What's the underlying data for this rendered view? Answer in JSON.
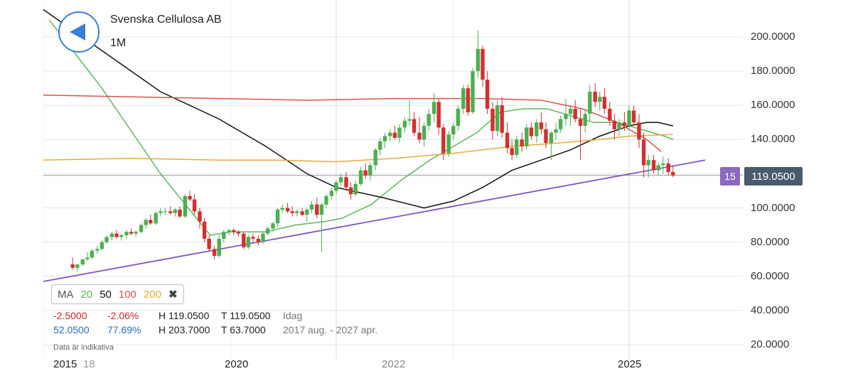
{
  "header": {
    "title": "Svenska Cellulosa AB",
    "period": "1M"
  },
  "ma_legend": {
    "label": "MA",
    "periods": [
      "20",
      "50",
      "100",
      "200"
    ],
    "close_symbol": "✖"
  },
  "stats": {
    "change_abs": "-2.5000",
    "change_pct": "-2.06%",
    "high_today": "H 119.0500",
    "last_today": "T 119.0500",
    "today_label": "Idag",
    "range_abs": "52.0500",
    "range_pct": "77.69%",
    "high_range": "H 203.7000",
    "low_range": "T 63.7000",
    "range_label": "2017 aug. - 2027 apr."
  },
  "disclaimer": "Data är indikativa",
  "x_axis": {
    "left_label": "2015",
    "left_sub": "18",
    "labels": [
      "2020",
      "2022",
      "2025"
    ]
  },
  "price_tag": "119.0500",
  "count_tag": "15",
  "colors": {
    "up": "#4caf50",
    "down": "#d32f2f",
    "ma20": "#5cb85c",
    "ma50": "#111111",
    "ma100": "#d9534f",
    "ma200": "#e8a93c",
    "trend": "#7e57c2",
    "tag": "#4a5a6e"
  },
  "chart_data": {
    "type": "candlestick",
    "title": "Svenska Cellulosa AB",
    "interval": "1M",
    "ylim": [
      10,
      210
    ],
    "y_ticks": [
      "20.0000",
      "40.0000",
      "60.0000",
      "80.0000",
      "100.0000",
      "120.0000",
      "140.0000",
      "160.0000",
      "180.0000",
      "200.0000"
    ],
    "last_price": 119.05,
    "x_labels": [
      "2015",
      "2020",
      "2022",
      "2025"
    ],
    "candles": [
      [
        2015.5,
        67,
        71,
        64,
        65
      ],
      [
        2015.58,
        65,
        67,
        63,
        67
      ],
      [
        2015.67,
        67,
        70,
        66,
        70
      ],
      [
        2015.75,
        70,
        74,
        69,
        71
      ],
      [
        2015.83,
        71,
        76,
        70,
        75
      ],
      [
        2015.92,
        75,
        78,
        73,
        76
      ],
      [
        2016.0,
        76,
        81,
        75,
        80
      ],
      [
        2016.08,
        80,
        84,
        79,
        83
      ],
      [
        2016.17,
        83,
        86,
        81,
        85
      ],
      [
        2016.25,
        85,
        87,
        82,
        83
      ],
      [
        2016.33,
        83,
        85,
        81,
        84
      ],
      [
        2016.42,
        84,
        87,
        82,
        86
      ],
      [
        2016.5,
        86,
        88,
        84,
        85
      ],
      [
        2016.58,
        85,
        87,
        83,
        86
      ],
      [
        2016.67,
        86,
        91,
        85,
        90
      ],
      [
        2016.75,
        90,
        94,
        88,
        93
      ],
      [
        2016.83,
        93,
        96,
        90,
        91
      ],
      [
        2016.92,
        91,
        98,
        90,
        97
      ],
      [
        2017.0,
        97,
        100,
        95,
        98
      ],
      [
        2017.08,
        98,
        100,
        96,
        98
      ],
      [
        2017.17,
        98,
        101,
        96,
        97
      ],
      [
        2017.25,
        97,
        100,
        95,
        99
      ],
      [
        2017.33,
        99,
        101,
        94,
        95
      ],
      [
        2017.42,
        95,
        108,
        94,
        107
      ],
      [
        2017.5,
        107,
        110,
        104,
        105
      ],
      [
        2017.58,
        105,
        108,
        96,
        98
      ],
      [
        2017.67,
        98,
        100,
        88,
        92
      ],
      [
        2017.75,
        92,
        94,
        80,
        82
      ],
      [
        2017.83,
        82,
        84,
        75,
        76
      ],
      [
        2017.92,
        76,
        78,
        70,
        72
      ],
      [
        2018.0,
        72,
        84,
        71,
        82
      ],
      [
        2018.08,
        82,
        87,
        80,
        86
      ],
      [
        2018.17,
        86,
        88,
        84,
        87
      ],
      [
        2018.25,
        87,
        88,
        84,
        86
      ],
      [
        2018.33,
        86,
        87,
        83,
        85
      ],
      [
        2018.42,
        85,
        86,
        76,
        77
      ],
      [
        2018.5,
        77,
        84,
        76,
        83
      ],
      [
        2018.58,
        83,
        85,
        80,
        82
      ],
      [
        2018.67,
        82,
        84,
        78,
        80
      ],
      [
        2018.75,
        80,
        86,
        79,
        85
      ],
      [
        2018.83,
        85,
        89,
        84,
        88
      ],
      [
        2018.92,
        88,
        92,
        86,
        91
      ],
      [
        2019.0,
        91,
        100,
        89,
        99
      ],
      [
        2019.08,
        99,
        102,
        97,
        100
      ],
      [
        2019.17,
        100,
        103,
        97,
        98
      ],
      [
        2019.25,
        98,
        101,
        95,
        97
      ],
      [
        2019.33,
        97,
        99,
        95,
        98
      ],
      [
        2019.42,
        98,
        100,
        95,
        96
      ],
      [
        2019.5,
        96,
        100,
        92,
        99
      ],
      [
        2019.58,
        99,
        104,
        97,
        102
      ],
      [
        2019.67,
        102,
        106,
        94,
        96
      ],
      [
        2019.75,
        96,
        103,
        74,
        102
      ],
      [
        2019.83,
        102,
        108,
        100,
        107
      ],
      [
        2019.92,
        107,
        112,
        105,
        110
      ],
      [
        2020.0,
        110,
        116,
        108,
        115
      ],
      [
        2020.08,
        115,
        120,
        113,
        118
      ],
      [
        2020.17,
        118,
        121,
        110,
        112
      ],
      [
        2020.25,
        112,
        115,
        105,
        108
      ],
      [
        2020.33,
        108,
        116,
        107,
        114
      ],
      [
        2020.42,
        114,
        124,
        113,
        122
      ],
      [
        2020.5,
        122,
        126,
        117,
        119
      ],
      [
        2020.58,
        119,
        127,
        116,
        125
      ],
      [
        2020.67,
        125,
        135,
        122,
        134
      ],
      [
        2020.75,
        134,
        141,
        131,
        139
      ],
      [
        2020.83,
        139,
        144,
        135,
        142
      ],
      [
        2020.92,
        142,
        146,
        139,
        144
      ],
      [
        2021.0,
        144,
        148,
        140,
        141
      ],
      [
        2021.08,
        141,
        149,
        138,
        147
      ],
      [
        2021.17,
        147,
        153,
        144,
        151
      ],
      [
        2021.25,
        151,
        163,
        148,
        152
      ],
      [
        2021.33,
        152,
        156,
        142,
        144
      ],
      [
        2021.42,
        144,
        153,
        138,
        140
      ],
      [
        2021.5,
        140,
        150,
        136,
        148
      ],
      [
        2021.58,
        148,
        158,
        145,
        155
      ],
      [
        2021.67,
        155,
        167,
        150,
        162
      ],
      [
        2021.75,
        162,
        164,
        143,
        147
      ],
      [
        2021.83,
        147,
        149,
        128,
        132
      ],
      [
        2021.92,
        132,
        145,
        130,
        143
      ],
      [
        2022.0,
        143,
        150,
        140,
        148
      ],
      [
        2022.08,
        148,
        160,
        145,
        158
      ],
      [
        2022.17,
        158,
        172,
        155,
        170
      ],
      [
        2022.25,
        170,
        172,
        154,
        156
      ],
      [
        2022.33,
        156,
        182,
        155,
        180
      ],
      [
        2022.42,
        180,
        204,
        176,
        193
      ],
      [
        2022.5,
        193,
        195,
        171,
        175
      ],
      [
        2022.58,
        175,
        180,
        155,
        158
      ],
      [
        2022.67,
        158,
        162,
        140,
        145
      ],
      [
        2022.75,
        145,
        163,
        142,
        160
      ],
      [
        2022.83,
        160,
        165,
        141,
        144
      ],
      [
        2022.92,
        144,
        150,
        132,
        135
      ],
      [
        2023.0,
        135,
        140,
        128,
        131
      ],
      [
        2023.08,
        131,
        142,
        129,
        140
      ],
      [
        2023.17,
        140,
        144,
        133,
        136
      ],
      [
        2023.25,
        136,
        149,
        134,
        147
      ],
      [
        2023.33,
        147,
        150,
        140,
        142
      ],
      [
        2023.42,
        142,
        152,
        138,
        150
      ],
      [
        2023.5,
        150,
        156,
        143,
        146
      ],
      [
        2023.58,
        146,
        150,
        135,
        138
      ],
      [
        2023.67,
        138,
        145,
        128,
        144
      ],
      [
        2023.75,
        144,
        150,
        140,
        146
      ],
      [
        2023.83,
        146,
        154,
        144,
        152
      ],
      [
        2023.92,
        152,
        164,
        148,
        155
      ],
      [
        2024.0,
        155,
        160,
        148,
        158
      ],
      [
        2024.08,
        158,
        163,
        150,
        152
      ],
      [
        2024.17,
        152,
        158,
        128,
        148
      ],
      [
        2024.25,
        148,
        158,
        144,
        155
      ],
      [
        2024.33,
        155,
        172,
        151,
        168
      ],
      [
        2024.42,
        168,
        173,
        159,
        162
      ],
      [
        2024.5,
        162,
        168,
        157,
        165
      ],
      [
        2024.58,
        165,
        170,
        155,
        158
      ],
      [
        2024.67,
        158,
        162,
        148,
        151
      ],
      [
        2024.75,
        151,
        155,
        140,
        146
      ],
      [
        2024.83,
        146,
        152,
        142,
        150
      ],
      [
        2024.92,
        150,
        156,
        145,
        148
      ],
      [
        2025.0,
        148,
        160,
        145,
        157
      ],
      [
        2025.08,
        157,
        160,
        148,
        150
      ],
      [
        2025.17,
        150,
        155,
        135,
        140
      ],
      [
        2025.25,
        140,
        144,
        118,
        125
      ],
      [
        2025.33,
        125,
        131,
        118,
        128
      ],
      [
        2025.42,
        128,
        131,
        120,
        122
      ],
      [
        2025.5,
        122,
        127,
        119,
        125
      ],
      [
        2025.58,
        125,
        130,
        120,
        126
      ],
      [
        2025.67,
        126,
        129,
        119,
        121
      ],
      [
        2025.75,
        121,
        125,
        118,
        119.05
      ]
    ],
    "ma_series": [
      {
        "name": "20",
        "points": [
          [
            2015.1,
            210
          ],
          [
            2016.0,
            170
          ],
          [
            2017.0,
            120
          ],
          [
            2017.85,
            84
          ],
          [
            2018.2,
            86
          ],
          [
            2018.8,
            86
          ],
          [
            2019.3,
            90
          ],
          [
            2019.8,
            92
          ],
          [
            2020.1,
            94
          ],
          [
            2020.6,
            102
          ],
          [
            2021.1,
            116
          ],
          [
            2021.6,
            128
          ],
          [
            2022.0,
            136
          ],
          [
            2022.4,
            144
          ],
          [
            2022.8,
            156
          ],
          [
            2023.2,
            158
          ],
          [
            2023.6,
            158
          ],
          [
            2024.0,
            154
          ],
          [
            2024.4,
            150
          ],
          [
            2024.8,
            150
          ],
          [
            2025.2,
            146
          ],
          [
            2025.6,
            142
          ],
          [
            2025.75,
            140
          ]
        ]
      },
      {
        "name": "50",
        "points": [
          [
            2015.0,
            216
          ],
          [
            2016.0,
            192
          ],
          [
            2017.0,
            168
          ],
          [
            2018.0,
            152
          ],
          [
            2018.8,
            136
          ],
          [
            2019.5,
            120
          ],
          [
            2020.0,
            112
          ],
          [
            2020.8,
            106
          ],
          [
            2021.5,
            100
          ],
          [
            2022.0,
            104
          ],
          [
            2022.5,
            112
          ],
          [
            2023.0,
            122
          ],
          [
            2023.5,
            128
          ],
          [
            2024.0,
            134
          ],
          [
            2024.5,
            142
          ],
          [
            2025.0,
            148
          ],
          [
            2025.3,
            150
          ],
          [
            2025.5,
            150
          ],
          [
            2025.75,
            148
          ]
        ]
      },
      {
        "name": "100",
        "points": [
          [
            2015.0,
            166
          ],
          [
            2016.5,
            165
          ],
          [
            2018.0,
            164
          ],
          [
            2019.5,
            163
          ],
          [
            2021.0,
            164
          ],
          [
            2022.5,
            164
          ],
          [
            2023.5,
            163
          ],
          [
            2024.2,
            158
          ],
          [
            2024.8,
            150
          ],
          [
            2025.3,
            140
          ],
          [
            2025.55,
            133
          ]
        ]
      },
      {
        "name": "200",
        "points": [
          [
            2015.0,
            128
          ],
          [
            2016.5,
            129
          ],
          [
            2018.0,
            128
          ],
          [
            2019.0,
            128
          ],
          [
            2020.0,
            127
          ],
          [
            2021.0,
            129
          ],
          [
            2022.0,
            132
          ],
          [
            2023.0,
            136
          ],
          [
            2023.8,
            138
          ],
          [
            2024.5,
            140
          ],
          [
            2025.0,
            142
          ],
          [
            2025.75,
            143
          ]
        ]
      }
    ],
    "trendline": [
      [
        2015.0,
        57
      ],
      [
        2026.3,
        128
      ]
    ]
  }
}
